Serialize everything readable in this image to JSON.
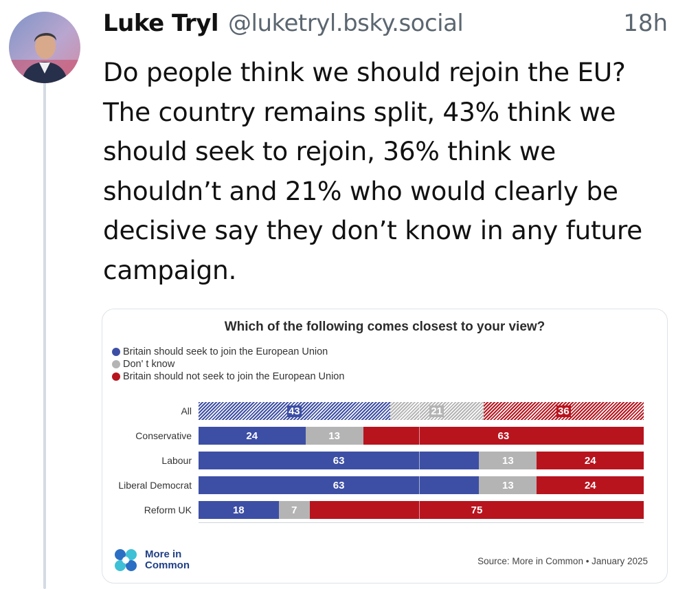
{
  "post": {
    "author_name": "Luke Tryl",
    "handle": "@luketryl.bsky.social",
    "timestamp": "18h",
    "text": "Do people think we should rejoin the EU? The country remains split, 43% think we should seek to rejoin, 36% think we shouldn’t and 21% who would clearly be decisive say they don’t know in any future campaign."
  },
  "colors": {
    "join": "#3d4fa5",
    "dont_know": "#b4b4b4",
    "not_join": "#b8141e",
    "thread_line": "#d4dbe3"
  },
  "icons": {
    "avatar": "avatar-photo",
    "logo": "more-in-common-logo"
  },
  "chart_data": {
    "type": "bar",
    "orientation": "horizontal",
    "stacked": true,
    "title": "Which of the following comes closest to your view?",
    "categories": [
      "All",
      "Conservative",
      "Labour",
      "Liberal Democrat",
      "Reform UK"
    ],
    "series": [
      {
        "name": "Britain should seek to join the European Union",
        "values": [
          43,
          24,
          63,
          63,
          18
        ]
      },
      {
        "name": "Don' t know",
        "values": [
          21,
          13,
          13,
          13,
          7
        ]
      },
      {
        "name": "Britain should not seek to join the European Union",
        "values": [
          36,
          63,
          24,
          24,
          75
        ]
      }
    ],
    "highlighted_category": "All",
    "legend_position": "top-left",
    "xlim": [
      0,
      100
    ],
    "source": "Source: More in Common • January 2025",
    "brand": [
      "More in",
      "Common"
    ]
  }
}
